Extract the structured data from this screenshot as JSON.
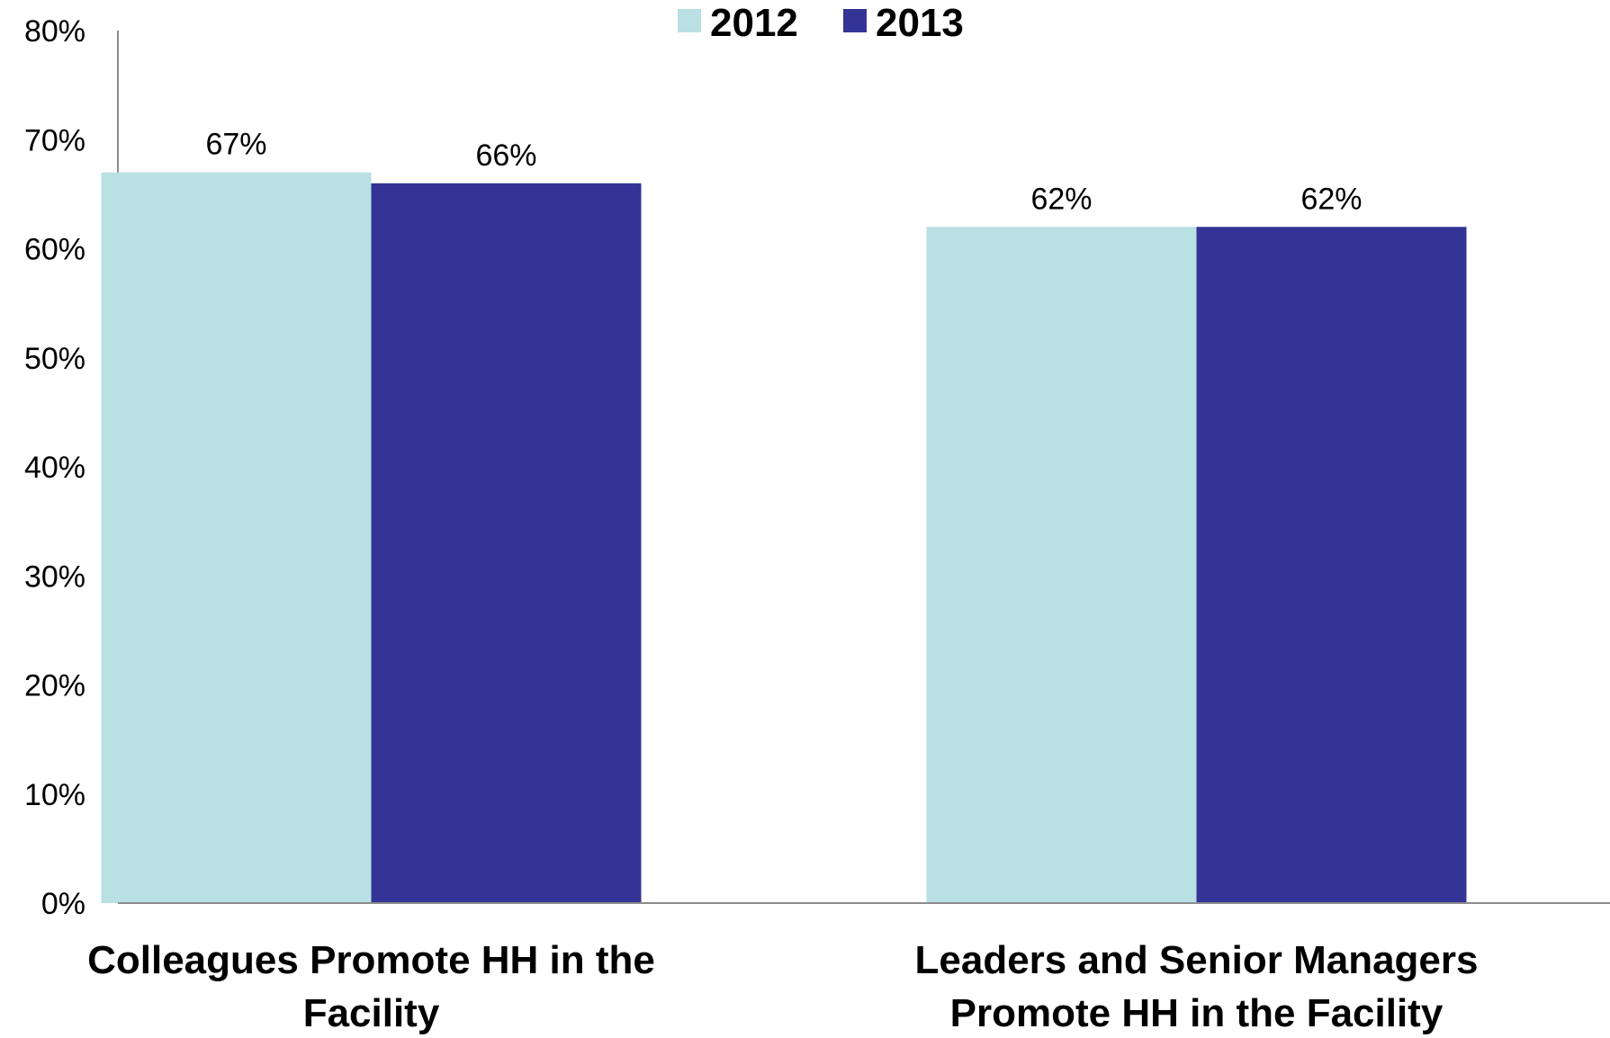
{
  "chart_data": {
    "type": "bar",
    "categories": [
      [
        "Colleagues Promote HH in the",
        "Facility"
      ],
      [
        "Leaders and Senior Managers",
        "Promote HH in the Facility"
      ]
    ],
    "series": [
      {
        "name": "2012",
        "values": [
          67,
          62
        ],
        "labels": [
          "67%",
          "62%"
        ],
        "color": "#b9e0e3"
      },
      {
        "name": "2013",
        "values": [
          66,
          62
        ],
        "labels": [
          "66%",
          "62%"
        ],
        "color": "#343497"
      }
    ],
    "yticks": [
      "0%",
      "10%",
      "20%",
      "30%",
      "40%",
      "50%",
      "60%",
      "70%",
      "80%"
    ],
    "ylim": [
      0,
      80
    ],
    "ytick_step": 10,
    "grid": false,
    "legend_position": "top-center",
    "axis_color": "#8c8c8c"
  }
}
